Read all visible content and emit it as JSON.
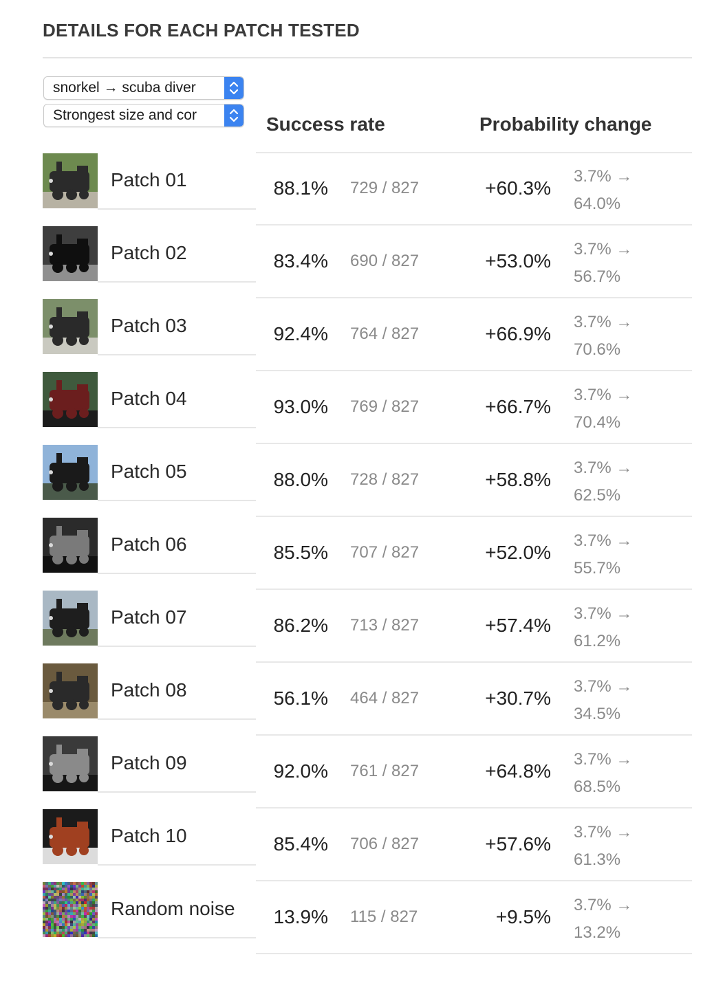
{
  "page": {
    "title": "DETAILS FOR EACH PATCH TESTED"
  },
  "controls": {
    "class_select_value": "snorkel → scuba diver",
    "strength_select_value": "Strongest size and cor"
  },
  "columns": {
    "success_rate": "Success rate",
    "probability_change": "Probability change"
  },
  "rows": [
    {
      "name": "Patch 01",
      "rate": "88.1%",
      "count": "729 / 827",
      "delta": "+60.3%",
      "from": "3.7% →",
      "to": "64.0%",
      "thumb": "steam-locomotive-image"
    },
    {
      "name": "Patch 02",
      "rate": "83.4%",
      "count": "690 / 827",
      "delta": "+53.0%",
      "from": "3.7% →",
      "to": "56.7%",
      "thumb": "steam-locomotive-image"
    },
    {
      "name": "Patch 03",
      "rate": "92.4%",
      "count": "764 / 827",
      "delta": "+66.9%",
      "from": "3.7% →",
      "to": "70.6%",
      "thumb": "steam-locomotive-image"
    },
    {
      "name": "Patch 04",
      "rate": "93.0%",
      "count": "769 / 827",
      "delta": "+66.7%",
      "from": "3.7% →",
      "to": "70.4%",
      "thumb": "steam-locomotive-image"
    },
    {
      "name": "Patch 05",
      "rate": "88.0%",
      "count": "728 / 827",
      "delta": "+58.8%",
      "from": "3.7% →",
      "to": "62.5%",
      "thumb": "steam-locomotive-image"
    },
    {
      "name": "Patch 06",
      "rate": "85.5%",
      "count": "707 / 827",
      "delta": "+52.0%",
      "from": "3.7% →",
      "to": "55.7%",
      "thumb": "steam-locomotive-image"
    },
    {
      "name": "Patch 07",
      "rate": "86.2%",
      "count": "713 / 827",
      "delta": "+57.4%",
      "from": "3.7% →",
      "to": "61.2%",
      "thumb": "steam-locomotive-image"
    },
    {
      "name": "Patch 08",
      "rate": "56.1%",
      "count": "464 / 827",
      "delta": "+30.7%",
      "from": "3.7% →",
      "to": "34.5%",
      "thumb": "steam-locomotive-image"
    },
    {
      "name": "Patch 09",
      "rate": "92.0%",
      "count": "761 / 827",
      "delta": "+64.8%",
      "from": "3.7% →",
      "to": "68.5%",
      "thumb": "steam-locomotive-image"
    },
    {
      "name": "Patch 10",
      "rate": "85.4%",
      "count": "706 / 827",
      "delta": "+57.6%",
      "from": "3.7% →",
      "to": "61.3%",
      "thumb": "steam-locomotive-image"
    },
    {
      "name": "Random noise",
      "rate": "13.9%",
      "count": "115 / 827",
      "delta": "+9.5%",
      "from": "3.7% →",
      "to": "13.2%",
      "thumb": "random-noise-image"
    }
  ],
  "theme": {
    "select_accent": "#3b83f0",
    "muted_text": "#8a8a8a"
  }
}
